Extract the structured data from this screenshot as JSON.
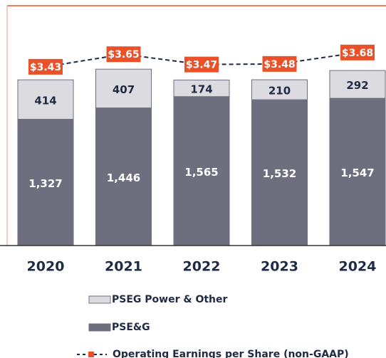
{
  "chart_data": {
    "type": "bar",
    "stacked": true,
    "categories": [
      "2020",
      "2021",
      "2022",
      "2023",
      "2024"
    ],
    "ylim": [
      0,
      2520
    ],
    "y2lim": [
      0.3,
      4.5
    ],
    "series": [
      {
        "name": "PSE&G",
        "color": "#6d6f7e",
        "values": [
          1327,
          1446,
          1565,
          1532,
          1547
        ],
        "value_labels": [
          "1,327",
          "1,446",
          "1,565",
          "1,532",
          "1,547"
        ]
      },
      {
        "name": "PSEG Power & Other",
        "color": "#dcdce0",
        "values": [
          414,
          407,
          174,
          210,
          292
        ]
      },
      {
        "name": "Operating Earnings per Share (non-GAAP)",
        "type": "line",
        "axis": "y2",
        "color": "#1f2a44",
        "marker_color": "#ea5128",
        "values": [
          3.43,
          3.65,
          3.47,
          3.48,
          3.68
        ],
        "value_labels": [
          "$3.43",
          "$3.65",
          "$3.47",
          "$3.48",
          "$3.68"
        ]
      }
    ]
  }
}
